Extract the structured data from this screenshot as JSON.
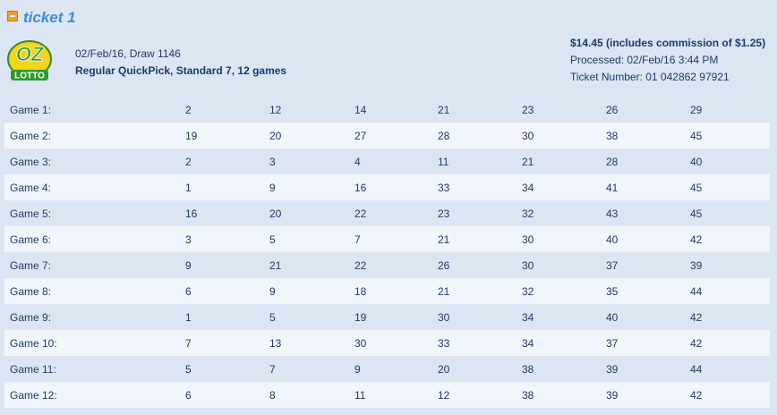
{
  "header": {
    "title": "ticket 1"
  },
  "logo": {
    "top": "OZ",
    "bottom": "LOTTO"
  },
  "draw": {
    "date_line": "02/Feb/16, Draw 1146",
    "type_line": "Regular QuickPick, Standard 7, 12 games"
  },
  "summary": {
    "price": "$14.45 (includes commission of $1.25)",
    "processed": "Processed: 02/Feb/16 3:44 PM",
    "ticket_number": "Ticket Number: 01 042862 97921"
  },
  "table": {
    "rows": [
      [
        "Game 1:",
        2,
        12,
        14,
        21,
        23,
        26,
        29
      ],
      [
        "Game 2:",
        19,
        20,
        27,
        28,
        30,
        38,
        45
      ],
      [
        "Game 3:",
        2,
        3,
        4,
        11,
        21,
        28,
        40
      ],
      [
        "Game 4:",
        1,
        9,
        16,
        33,
        34,
        41,
        45
      ],
      [
        "Game 5:",
        16,
        20,
        22,
        23,
        32,
        43,
        45
      ],
      [
        "Game 6:",
        3,
        5,
        7,
        21,
        30,
        40,
        42
      ],
      [
        "Game 7:",
        9,
        21,
        22,
        26,
        30,
        37,
        39
      ],
      [
        "Game 8:",
        6,
        9,
        18,
        21,
        32,
        35,
        44
      ],
      [
        "Game 9:",
        1,
        5,
        19,
        30,
        34,
        40,
        42
      ],
      [
        "Game 10:",
        7,
        13,
        30,
        33,
        34,
        37,
        42
      ],
      [
        "Game 11:",
        5,
        7,
        9,
        20,
        38,
        39,
        44
      ],
      [
        "Game 12:",
        6,
        8,
        11,
        12,
        38,
        39,
        42
      ]
    ]
  }
}
